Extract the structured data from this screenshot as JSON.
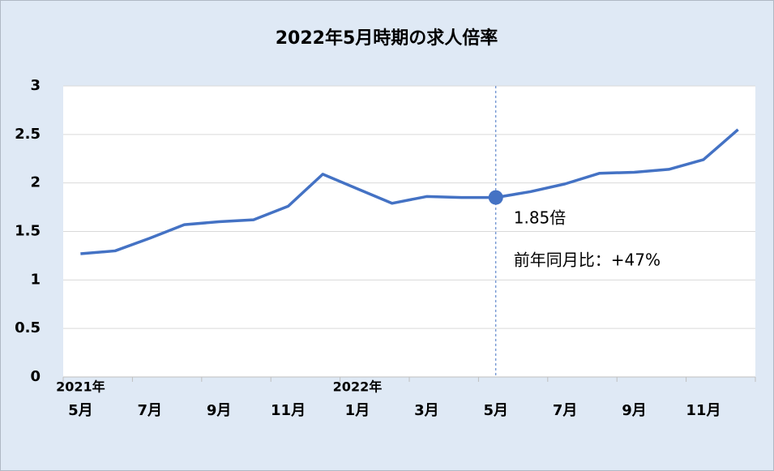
{
  "chart_data": {
    "type": "line",
    "title": "2022年5月時期の求人倍率",
    "categories": [
      "5月",
      null,
      "7月",
      null,
      "9月",
      null,
      "11月",
      null,
      "1月",
      null,
      "3月",
      null,
      "5月",
      null,
      "7月",
      null,
      "9月",
      null,
      "11月",
      null
    ],
    "category_years": [
      "2021年",
      null,
      null,
      null,
      null,
      null,
      null,
      null,
      "2022年",
      null,
      null,
      null,
      null,
      null,
      null,
      null,
      null,
      null,
      null,
      null
    ],
    "series": [
      {
        "name": "求人倍率",
        "color": "#4472c4",
        "values": [
          1.27,
          1.3,
          1.43,
          1.57,
          1.6,
          1.62,
          1.76,
          2.09,
          1.94,
          1.79,
          1.86,
          1.85,
          1.85,
          1.91,
          1.99,
          2.1,
          2.11,
          2.14,
          2.24,
          2.55
        ]
      }
    ],
    "ylim": [
      0,
      3
    ],
    "yticks": [
      0,
      0.5,
      1,
      1.5,
      2,
      2.5,
      3
    ],
    "grid": true,
    "highlight": {
      "index": 12,
      "value_label": "1.85倍",
      "note": "前年同月比：+47%"
    }
  }
}
